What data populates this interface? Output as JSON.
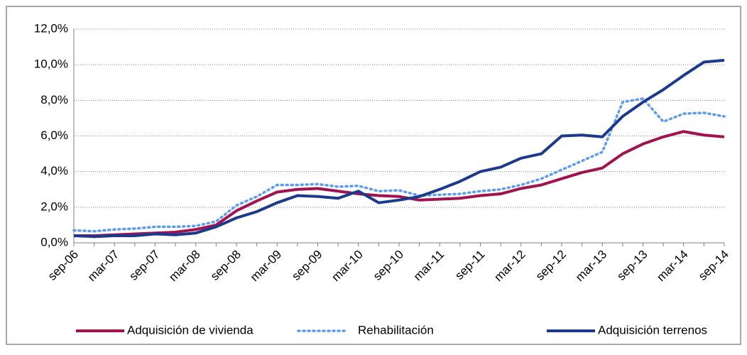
{
  "chart_data": {
    "type": "line",
    "categories": [
      "sep-06",
      null,
      "mar-07",
      null,
      "sep-07",
      null,
      "mar-08",
      null,
      "sep-08",
      null,
      "mar-09",
      null,
      "sep-09",
      null,
      "mar-10",
      null,
      "sep-10",
      null,
      "mar-11",
      null,
      "sep-11",
      null,
      "mar-12",
      null,
      "sep-12",
      null,
      "mar-13",
      null,
      "sep-13",
      null,
      "mar-14",
      null,
      "sep-14"
    ],
    "series": [
      {
        "name": "Adquisición de vivienda",
        "color": "#a0134f",
        "line_style": "solid",
        "values": [
          0.4,
          0.4,
          0.45,
          0.5,
          0.55,
          0.6,
          0.75,
          1.0,
          1.8,
          2.35,
          2.85,
          3.0,
          3.05,
          2.9,
          2.75,
          2.65,
          2.6,
          2.4,
          2.45,
          2.5,
          2.65,
          2.75,
          3.05,
          3.25,
          3.6,
          3.95,
          4.2,
          5.0,
          5.55,
          5.95,
          6.25,
          6.05,
          5.95
        ]
      },
      {
        "name": "Rehabilitación",
        "color": "#5b9bf0",
        "line_style": "dotted",
        "values": [
          0.7,
          0.65,
          0.75,
          0.8,
          0.9,
          0.9,
          0.95,
          1.2,
          2.1,
          2.6,
          3.25,
          3.25,
          3.3,
          3.15,
          3.2,
          2.9,
          2.95,
          2.65,
          2.7,
          2.75,
          2.9,
          3.0,
          3.25,
          3.6,
          4.1,
          4.6,
          5.1,
          7.9,
          8.1,
          6.8,
          7.25,
          7.3,
          7.1
        ]
      },
      {
        "name": "Adquisición terrenos",
        "color": "#1c3a8c",
        "line_style": "solid",
        "values": [
          0.4,
          0.35,
          0.4,
          0.4,
          0.5,
          0.45,
          0.55,
          0.9,
          1.4,
          1.75,
          2.25,
          2.65,
          2.6,
          2.5,
          2.9,
          2.25,
          2.4,
          2.6,
          3.0,
          3.45,
          4.0,
          4.25,
          4.75,
          5.0,
          6.0,
          6.05,
          5.95,
          7.1,
          7.9,
          8.6,
          9.4,
          10.15,
          10.25
        ]
      }
    ],
    "ylim": [
      0,
      12
    ],
    "yticks": [
      {
        "value": 0,
        "label": "0,0%"
      },
      {
        "value": 2,
        "label": "2,0%"
      },
      {
        "value": 4,
        "label": "4,0%"
      },
      {
        "value": 6,
        "label": "6,0%"
      },
      {
        "value": 8,
        "label": "8,0%"
      },
      {
        "value": 10,
        "label": "10,0%"
      },
      {
        "value": 12,
        "label": "12,0%"
      }
    ],
    "grid": true,
    "legend": "bottom"
  }
}
